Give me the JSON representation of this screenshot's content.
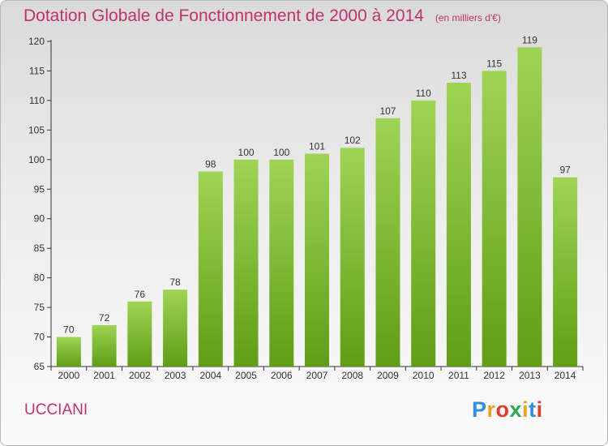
{
  "header": {
    "title": "Dotation Globale de Fonctionnement de 2000 à 2014",
    "subtitle": "(en milliers d'€)"
  },
  "commune": "UCCIANI",
  "logo": {
    "text": "Proxiti",
    "letters": [
      {
        "ch": "P",
        "color": "#2f8fd8"
      },
      {
        "ch": "r",
        "color": "#f0a020"
      },
      {
        "ch": "o",
        "color": "#e23c2a"
      },
      {
        "ch": "x",
        "color": "#2ea84a"
      },
      {
        "ch": "i",
        "color": "#f0a020"
      },
      {
        "ch": "t",
        "color": "#2f8fd8"
      },
      {
        "ch": "i",
        "color": "#e23c2a"
      }
    ]
  },
  "chart_data": {
    "type": "bar",
    "title": "Dotation Globale de Fonctionnement de 2000 à 2014",
    "subtitle": "(en milliers d'€)",
    "xlabel": "",
    "ylabel": "",
    "categories": [
      "2000",
      "2001",
      "2002",
      "2003",
      "2004",
      "2005",
      "2006",
      "2007",
      "2008",
      "2009",
      "2010",
      "2011",
      "2012",
      "2013",
      "2014"
    ],
    "values": [
      70,
      72,
      76,
      78,
      98,
      100,
      100,
      101,
      102,
      107,
      110,
      113,
      115,
      119,
      97
    ],
    "ylim": [
      65,
      120
    ],
    "yticks": [
      65,
      70,
      75,
      80,
      85,
      90,
      95,
      100,
      105,
      110,
      115,
      120
    ],
    "grid": false,
    "legend": "none",
    "colors": {
      "bar_top": "#9fd454",
      "bar_bottom": "#5f9e16",
      "axis": "#333333",
      "text": "#333333"
    }
  }
}
